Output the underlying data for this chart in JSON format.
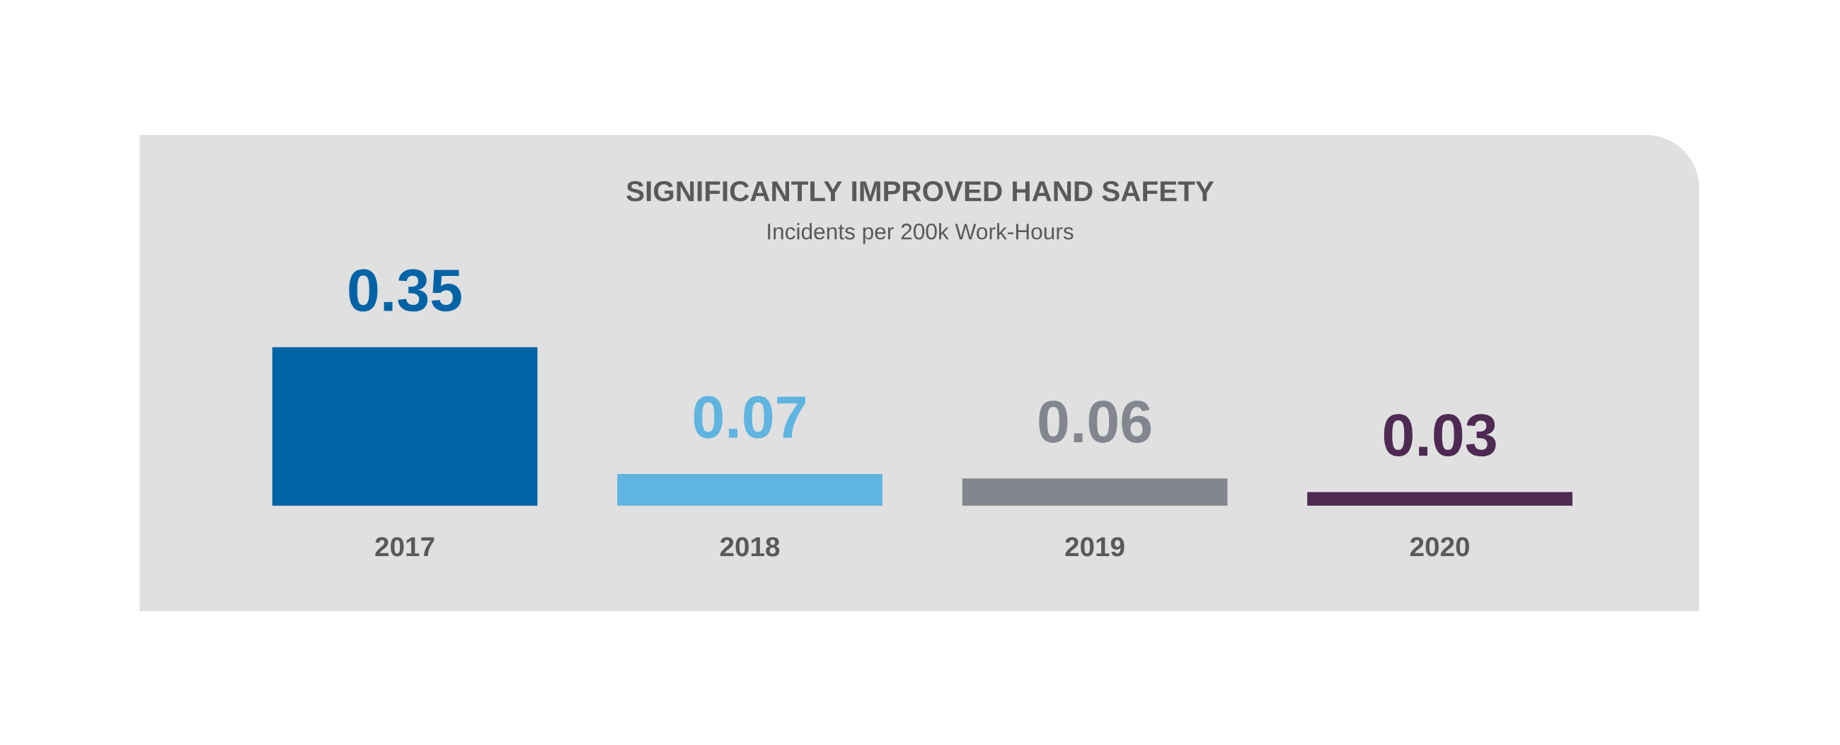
{
  "chart_data": {
    "type": "bar",
    "title": "SIGNIFICANTLY IMPROVED HAND SAFETY",
    "subtitle": "Incidents per 200k Work-Hours",
    "categories": [
      "2017",
      "2018",
      "2019",
      "2020"
    ],
    "values": [
      0.35,
      0.07,
      0.06,
      0.03
    ],
    "colors": [
      "#0063a6",
      "#5fb4e0",
      "#83868f",
      "#4e2a53"
    ],
    "data_labels": true
  }
}
